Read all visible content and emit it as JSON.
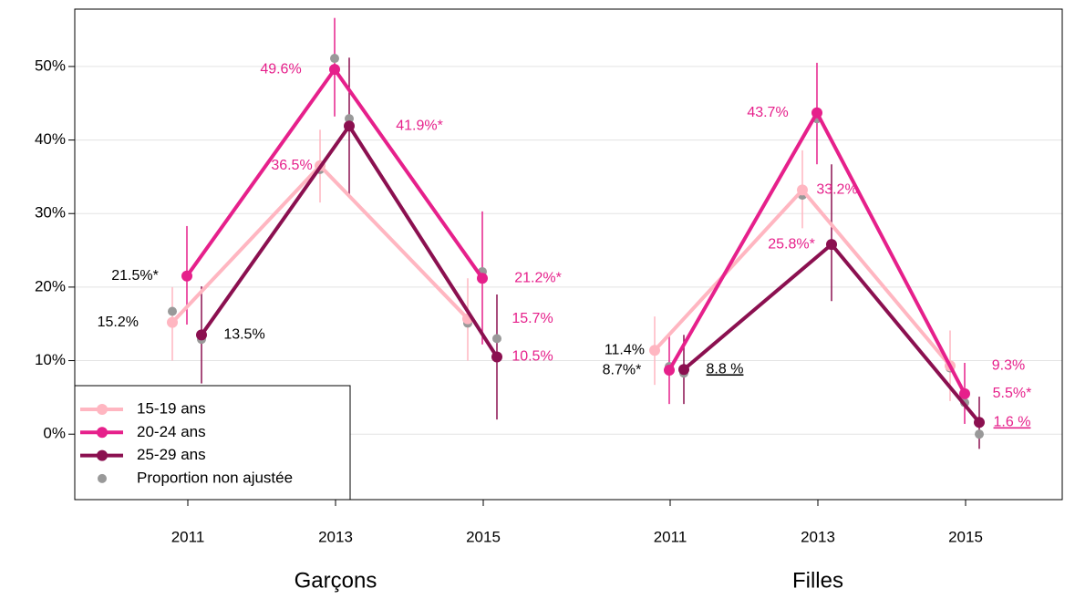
{
  "chart_data": {
    "type": "line",
    "categories": [
      "2011",
      "2013",
      "2015",
      "2011",
      "2013",
      "2015"
    ],
    "groups": [
      "Garçons",
      "Filles"
    ],
    "ylim": [
      -8.9,
      57.8
    ],
    "yticks": [
      {
        "value": 0,
        "label": "0%"
      },
      {
        "value": 10,
        "label": "10%"
      },
      {
        "value": 20,
        "label": "20%"
      },
      {
        "value": 30,
        "label": "30%"
      },
      {
        "value": 40,
        "label": "40%"
      },
      {
        "value": 50,
        "label": "50%"
      }
    ],
    "grid": true,
    "legend": "bottom-left",
    "label_colors": [
      "#000000",
      "#e6208b",
      "#e6208b",
      "#000000",
      "#e6208b",
      "#e6208b"
    ],
    "unadjusted_name": "Proportion non ajustée",
    "unadjusted_color": "#999999",
    "series": [
      {
        "name": "15-19 ans",
        "color": "#ffb6c1",
        "values": [
          15.2,
          36.5,
          15.7,
          11.4,
          33.2,
          9.3
        ],
        "value_labels": [
          "15.2%",
          "36.5%",
          "15.7%",
          "11.4%",
          "33.2%",
          "9.3%"
        ],
        "lower": [
          10.0,
          31.5,
          10.0,
          6.7,
          28.0,
          4.5
        ],
        "upper": [
          20.0,
          41.4,
          21.2,
          16.0,
          38.6,
          14.1
        ],
        "unadjusted": [
          16.7,
          36.0,
          15.1,
          11.4,
          32.5,
          9.0
        ]
      },
      {
        "name": "20-24 ans",
        "color": "#e6208b",
        "values": [
          21.5,
          49.6,
          21.2,
          8.7,
          43.7,
          5.5
        ],
        "value_labels": [
          "21.5%*",
          "49.6%",
          "21.2%*",
          "8.7%*",
          "43.7%",
          "5.5%*"
        ],
        "lower": [
          14.9,
          43.2,
          12.2,
          4.1,
          36.7,
          1.4
        ],
        "upper": [
          28.3,
          56.6,
          30.3,
          13.5,
          50.5,
          9.7
        ],
        "unadjusted": [
          21.5,
          51.1,
          22.1,
          9.2,
          42.9,
          4.3
        ]
      },
      {
        "name": "25-29 ans",
        "color": "#8b1050",
        "values": [
          13.5,
          41.9,
          10.5,
          8.8,
          25.8,
          1.6
        ],
        "value_labels": [
          "13.5%",
          "41.9%*",
          "10.5%",
          "8.8 %",
          "25.8%*",
          "1.6 %"
        ],
        "underline": [
          false,
          false,
          false,
          true,
          false,
          true
        ],
        "lower": [
          6.9,
          32.6,
          2.0,
          4.1,
          18.1,
          -2.0
        ],
        "upper": [
          20.1,
          51.2,
          19.0,
          13.5,
          36.7,
          5.1
        ],
        "unadjusted": [
          12.9,
          42.9,
          13.0,
          8.3,
          25.8,
          0.0
        ]
      }
    ]
  }
}
